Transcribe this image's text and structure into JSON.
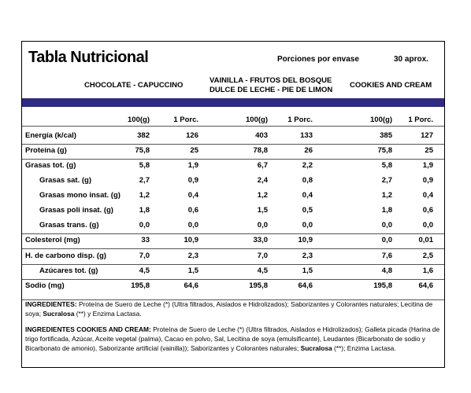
{
  "title": "Tabla Nutricional",
  "portions_label": "Porciones por envase",
  "portions_value": "30 aprox.",
  "flavors": [
    {
      "line1": "CHOCOLATE  -  CAPUCCINO",
      "line2": ""
    },
    {
      "line1": "VAINILLA  -  FRUTOS DEL BOSQUE",
      "line2": "DULCE DE LECHE  -  PIE DE LIMON"
    },
    {
      "line1": "COOKIES AND CREAM",
      "line2": ""
    }
  ],
  "col_headers": {
    "per100": "100(g)",
    "per_portion": "1 Porc."
  },
  "rows": [
    {
      "label": "Energía (k/cal)",
      "indent": false,
      "v": [
        "382",
        "126",
        "403",
        "133",
        "385",
        "127"
      ]
    },
    {
      "label": "Proteína (g)",
      "indent": false,
      "v": [
        "75,8",
        "25",
        "78,8",
        "26",
        "75,8",
        "25"
      ]
    },
    {
      "label": "Grasas tot. (g)",
      "indent": false,
      "v": [
        "5,8",
        "1,9",
        "6,7",
        "2,2",
        "5,8",
        "1,9"
      ]
    },
    {
      "label": "Grasas sat. (g)",
      "indent": true,
      "v": [
        "2,7",
        "0,9",
        "2,4",
        "0,8",
        "2,7",
        "0,9"
      ]
    },
    {
      "label": "Grasas mono insat. (g)",
      "indent": true,
      "v": [
        "1,2",
        "0,4",
        "1,2",
        "0,4",
        "1,2",
        "0,4"
      ]
    },
    {
      "label": "Grasas poli insat. (g)",
      "indent": true,
      "v": [
        "1,8",
        "0,6",
        "1,5",
        "0,5",
        "1,8",
        "0,6"
      ]
    },
    {
      "label": "Grasas trans. (g)",
      "indent": true,
      "v": [
        "0,0",
        "0,0",
        "0,0",
        "0,0",
        "0,0",
        "0,0"
      ]
    },
    {
      "label": "Colesterol (mg)",
      "indent": false,
      "v": [
        "33",
        "10,9",
        "33,0",
        "10,9",
        "0,0",
        "0,01"
      ]
    },
    {
      "label": "H. de carbono disp. (g)",
      "indent": false,
      "v": [
        "7,0",
        "2,3",
        "7,0",
        "2,3",
        "7,6",
        "2,5"
      ]
    },
    {
      "label": "Azúcares tot. (g)",
      "indent": true,
      "v": [
        "4,5",
        "1,5",
        "4,5",
        "1,5",
        "4,8",
        "1,6"
      ]
    },
    {
      "label": "Sodio (mg)",
      "indent": false,
      "v": [
        "195,8",
        "64,6",
        "195,8",
        "64,6",
        "195,8",
        "64,6"
      ]
    }
  ],
  "ingredients": {
    "label": "INGREDIENTES:",
    "text1": " Proteína de Suero de Leche (*) (Ultra filtrados, Aislados e Hidrolizados); Saborizantes y Colorantes naturales; Lecitina de soya; ",
    "sweetener": "Sucralosa",
    "text2": " (**) y Enzima Lactasa."
  },
  "ingredients_cookies": {
    "label": "INGREDIENTES COOKIES AND CREAM:",
    "text1": " Proteína de Suero de Leche (*) (Ultra filtrados, Aislados e Hidrolizados); Galleta picada (Harina de trigo fortificada, Azúcar, Aceite vegetal (palma), Cacao en polvo, Sal, Lecitina de soya (emulsificante), Leudantes (Bicarbonato de sodio y Bicarbonato de amonio), Saborizante artificial (vainilla)); Saborizantes y Colorantes naturales; ",
    "sweetener": "Sucralosa",
    "text2": " (**); Enzima Lactasa."
  },
  "colors": {
    "bar": "#2e2a86"
  }
}
